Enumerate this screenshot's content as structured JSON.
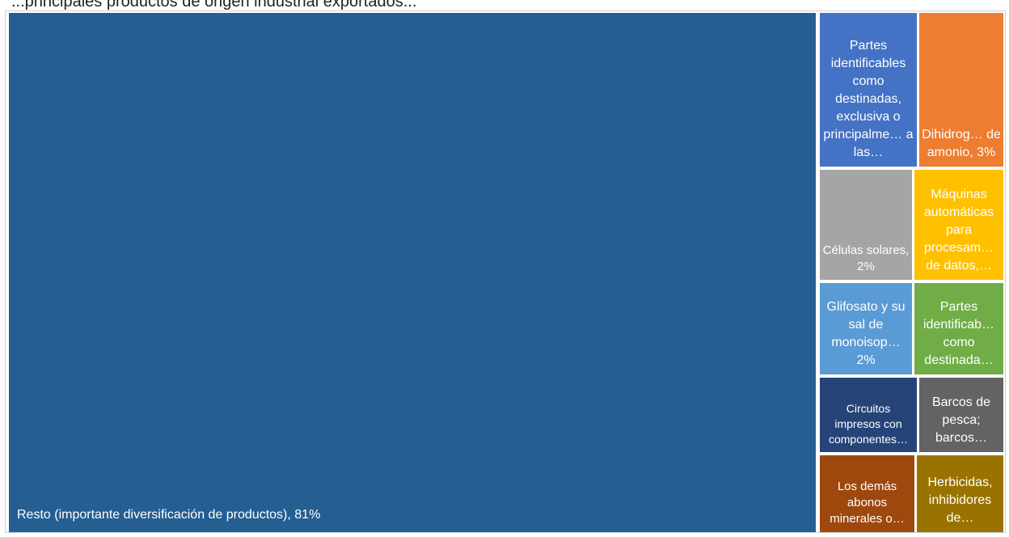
{
  "chart_data": {
    "type": "treemap",
    "title": "...principales productos de origen industrial exportados...",
    "items": [
      {
        "label": "Resto (importante diversificación de productos), 81%",
        "value": 81,
        "color": "#255e91"
      },
      {
        "label": "Partes identificables como destinadas, exclusiva o principalme… a las…",
        "value": 3,
        "color": "#4472c4"
      },
      {
        "label": "Dihidrog… de amonio, 3%",
        "value": 3,
        "color": "#ed7d31"
      },
      {
        "label": "Células solares, 2%",
        "value": 2,
        "color": "#a5a5a5"
      },
      {
        "label": "Máquinas automáticas para procesam… de datos,…",
        "value": 2,
        "color": "#ffc000"
      },
      {
        "label": "Glifosato y su sal de monoisop… 2%",
        "value": 2,
        "color": "#5b9bd5"
      },
      {
        "label": "Partes identificab… como destinada…",
        "value": 2,
        "color": "#70ad47"
      },
      {
        "label": "Circuitos impresos con componentes…",
        "value": 1.5,
        "color": "#264478"
      },
      {
        "label": "Barcos de pesca; barcos…",
        "value": 1.5,
        "color": "#636363"
      },
      {
        "label": "Los demás abonos minerales o…",
        "value": 1.5,
        "color": "#9e480e"
      },
      {
        "label": "Herbicidas, inhibidores de…",
        "value": 1.5,
        "color": "#997300"
      }
    ]
  }
}
